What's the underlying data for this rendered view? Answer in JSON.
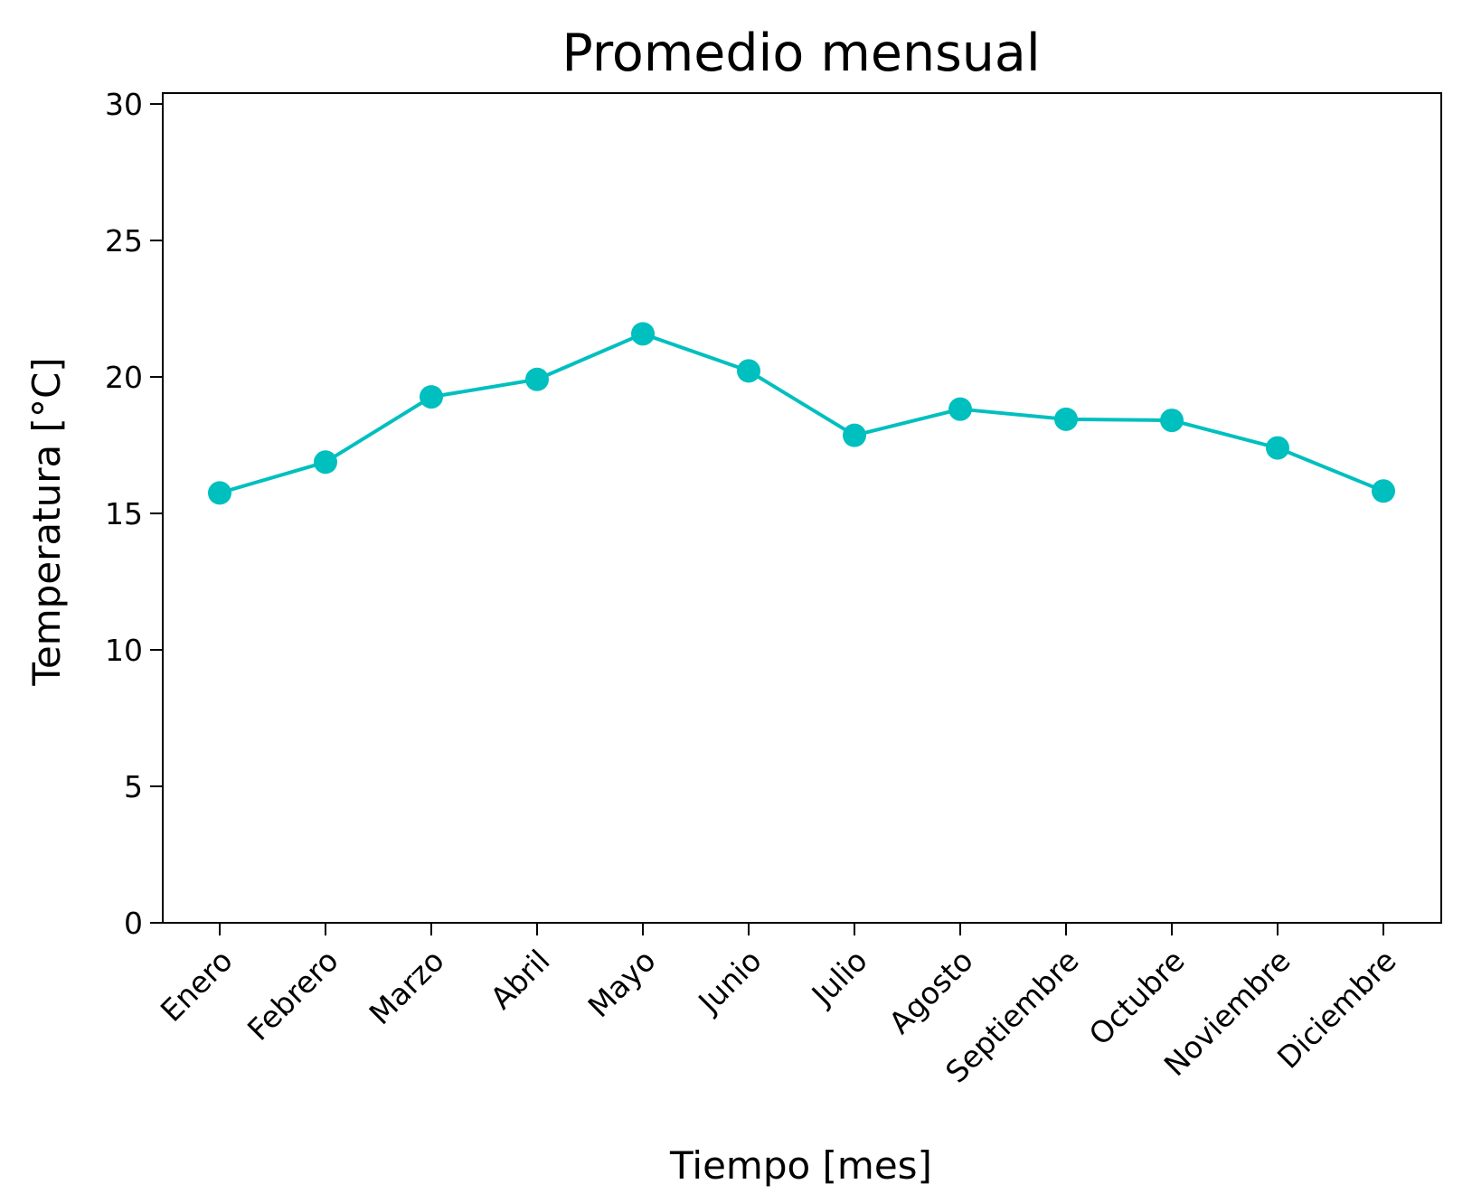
{
  "chart_data": {
    "type": "line",
    "title": "Promedio mensual",
    "xlabel": "Tiempo [mes]",
    "ylabel": "Temperatura [°C]",
    "categories": [
      "Enero",
      "Febrero",
      "Marzo",
      "Abril",
      "Mayo",
      "Junio",
      "Julio",
      "Agosto",
      "Septiembre",
      "Octubre",
      "Noviembre",
      "Diciembre"
    ],
    "series": [
      {
        "values": [
          15.75,
          16.88,
          19.27,
          19.91,
          21.58,
          20.22,
          17.86,
          18.82,
          18.45,
          18.41,
          17.4,
          15.82
        ],
        "color": "#00bfbf"
      }
    ],
    "ylim": [
      0,
      30.4
    ],
    "yticks": [
      0,
      5,
      10,
      15,
      20,
      25,
      30
    ],
    "grid": false,
    "legend": "none",
    "marker": "circle"
  }
}
